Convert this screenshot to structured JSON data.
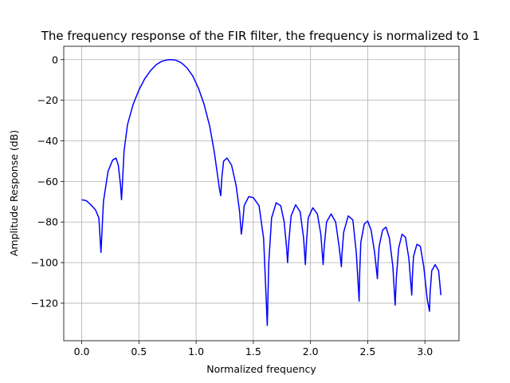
{
  "chart_data": {
    "type": "line",
    "title": "The frequency response of the FIR filter, the frequency is normalized to 1",
    "xlabel": "Normalized frequency",
    "ylabel": "Amplitude Response (dB)",
    "xlim": [
      -0.157,
      3.298
    ],
    "ylim": [
      -138.5,
      6.6
    ],
    "xticks": [
      0.0,
      0.5,
      1.0,
      1.5,
      2.0,
      2.5,
      3.0
    ],
    "xtick_labels": [
      "0.0",
      "0.5",
      "1.0",
      "1.5",
      "2.0",
      "2.5",
      "3.0"
    ],
    "yticks": [
      0,
      -20,
      -40,
      -60,
      -80,
      -100,
      -120
    ],
    "ytick_labels": [
      "0",
      "−20",
      "−40",
      "−60",
      "−80",
      "−100",
      "−120"
    ],
    "grid": true,
    "series": [
      {
        "color": "#0000ff",
        "x": [
          0.0,
          0.04,
          0.08,
          0.12,
          0.15,
          0.168,
          0.19,
          0.23,
          0.27,
          0.3,
          0.32,
          0.34,
          0.348,
          0.355,
          0.37,
          0.4,
          0.45,
          0.5,
          0.55,
          0.6,
          0.65,
          0.7,
          0.75,
          0.785,
          0.82,
          0.87,
          0.92,
          0.97,
          1.02,
          1.07,
          1.12,
          1.16,
          1.19,
          1.205,
          1.215,
          1.225,
          1.24,
          1.27,
          1.31,
          1.35,
          1.38,
          1.395,
          1.405,
          1.42,
          1.46,
          1.5,
          1.55,
          1.59,
          1.61,
          1.622,
          1.635,
          1.66,
          1.7,
          1.74,
          1.77,
          1.79,
          1.8,
          1.81,
          1.83,
          1.87,
          1.91,
          1.94,
          1.955,
          1.965,
          1.98,
          2.02,
          2.06,
          2.09,
          2.11,
          2.12,
          2.14,
          2.18,
          2.22,
          2.25,
          2.27,
          2.275,
          2.29,
          2.33,
          2.37,
          2.4,
          2.425,
          2.43,
          2.44,
          2.47,
          2.5,
          2.53,
          2.56,
          2.585,
          2.59,
          2.6,
          2.63,
          2.66,
          2.69,
          2.72,
          2.74,
          2.75,
          2.77,
          2.8,
          2.83,
          2.86,
          2.885,
          2.89,
          2.9,
          2.93,
          2.96,
          2.99,
          3.02,
          3.04,
          3.045,
          3.06,
          3.09,
          3.12,
          3.14
        ],
        "y": [
          -69,
          -69.5,
          -71.5,
          -74,
          -78,
          -95,
          -70,
          -55,
          -49.5,
          -48.5,
          -52,
          -62,
          -69,
          -62,
          -45,
          -32,
          -22,
          -15,
          -9.5,
          -5.5,
          -2.5,
          -0.8,
          -0.1,
          0,
          -0.2,
          -1.5,
          -4,
          -8,
          -14,
          -22,
          -33,
          -46,
          -58,
          -64,
          -67,
          -58,
          -50,
          -48.5,
          -52,
          -62,
          -75,
          -86,
          -82,
          -72,
          -67.5,
          -68,
          -72,
          -88,
          -115,
          -131,
          -100,
          -78,
          -70.5,
          -72,
          -80,
          -92,
          -100,
          -90,
          -77,
          -71.5,
          -75,
          -88,
          -101,
          -90,
          -78,
          -73,
          -76,
          -86,
          -101,
          -92,
          -80,
          -76,
          -80,
          -92,
          -102,
          -96,
          -85,
          -77,
          -79,
          -95,
          -119,
          -105,
          -90,
          -81,
          -79.5,
          -84,
          -95,
          -108,
          -100,
          -92,
          -84,
          -82.5,
          -88,
          -102,
          -121,
          -108,
          -93,
          -86,
          -87.5,
          -98,
          -116,
          -108,
          -97,
          -91,
          -92,
          -102,
          -118,
          -124,
          -115,
          -104,
          -101,
          -104,
          -116
        ]
      }
    ]
  }
}
